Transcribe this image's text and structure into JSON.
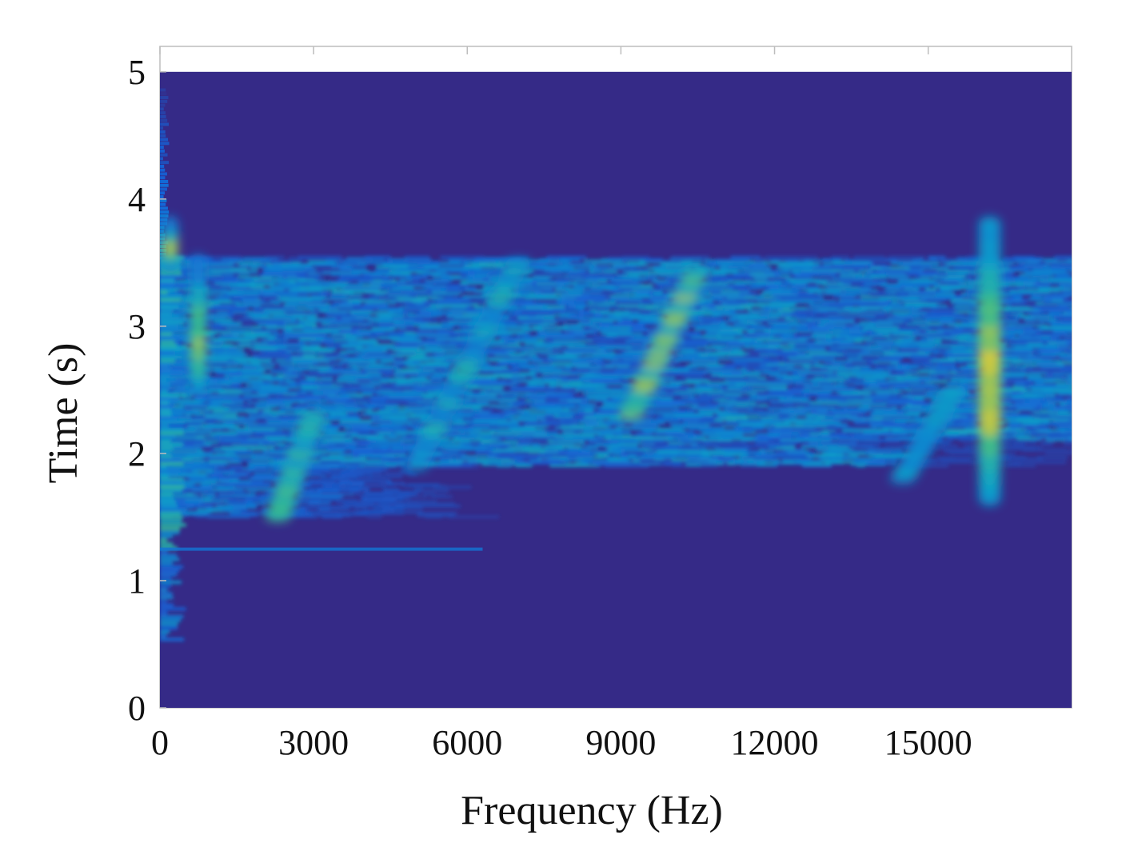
{
  "chart_data": {
    "type": "heatmap",
    "subtype": "spectrogram",
    "title": "",
    "xlabel": "Frequency (Hz)",
    "ylabel": "Time (s)",
    "xlim": [
      0,
      17800
    ],
    "ylim": [
      0,
      5.2
    ],
    "xticks": [
      0,
      3000,
      6000,
      9000,
      12000,
      15000
    ],
    "yticks": [
      0,
      1,
      2,
      3,
      4,
      5
    ],
    "xtick_labels": [
      "0",
      "3000",
      "6000",
      "9000",
      "12000",
      "15000"
    ],
    "ytick_labels": [
      "0",
      "1",
      "2",
      "3",
      "4",
      "5"
    ],
    "data_time_range": [
      0,
      5.0
    ],
    "grid": false,
    "colormap": "parula",
    "colors": {
      "low": "#352a87",
      "mid_low": "#1565d8",
      "mid": "#0fa3c8",
      "mid_high": "#3bbb8a",
      "high": "#f5c82a"
    },
    "regions": [
      {
        "label": "silent-top",
        "freq": [
          0,
          17800
        ],
        "time": [
          3.55,
          5.0
        ],
        "intensity": 0.0
      },
      {
        "label": "broadband-activity",
        "freq": [
          0,
          17800
        ],
        "time": [
          1.5,
          3.55
        ],
        "intensity": 0.35
      },
      {
        "label": "low-frequency-band",
        "freq": [
          0,
          1000
        ],
        "time": [
          1.25,
          3.55
        ],
        "intensity": 0.5
      },
      {
        "label": "silent-bottom",
        "freq": [
          0,
          17800
        ],
        "time": [
          0,
          1.25
        ],
        "intensity": 0.0
      }
    ],
    "features": [
      {
        "label": "tone-16000Hz",
        "freq": 16200,
        "time": [
          1.65,
          3.8
        ],
        "peak_intensity": 1.0
      },
      {
        "label": "low-freq-burst",
        "freq": 200,
        "time": [
          3.5,
          3.8
        ],
        "peak_intensity": 0.95
      },
      {
        "label": "band-700Hz",
        "freq": 750,
        "time": [
          2.5,
          3.5
        ],
        "peak_intensity": 0.85
      },
      {
        "label": "sweep-9000-10500Hz",
        "freq": [
          9200,
          10500
        ],
        "time": [
          2.3,
          3.45
        ],
        "peak_intensity": 0.85
      },
      {
        "label": "sweep-2000-3000Hz",
        "freq": [
          2300,
          3000
        ],
        "time": [
          1.5,
          2.3
        ],
        "peak_intensity": 0.75
      },
      {
        "label": "sweep-5000-7000Hz",
        "freq": [
          5000,
          7000
        ],
        "time": [
          1.9,
          3.5
        ],
        "peak_intensity": 0.6
      },
      {
        "label": "sweep-14500-15500Hz",
        "freq": [
          14500,
          15500
        ],
        "time": [
          1.8,
          2.5
        ],
        "peak_intensity": 0.55
      }
    ]
  }
}
